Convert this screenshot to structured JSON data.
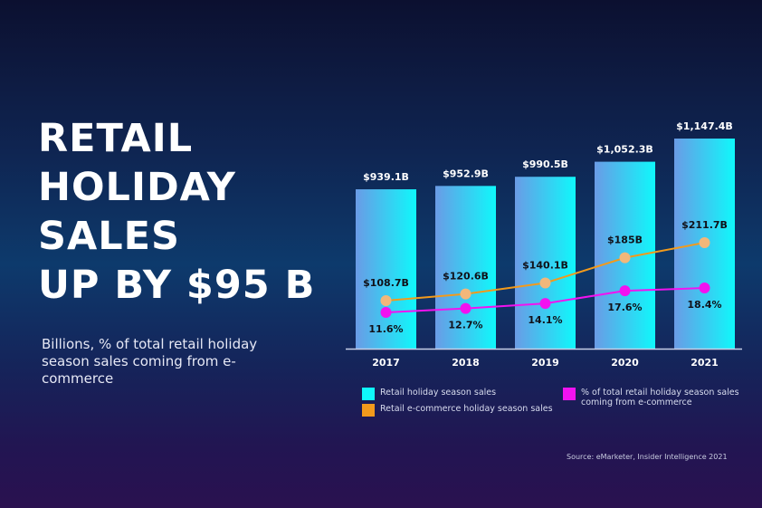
{
  "headline": [
    "RETAIL",
    "HOLIDAY",
    "SALES",
    "UP BY $95 B"
  ],
  "subtitle": "Billions, % of total retail holiday season sales coming from e-commerce",
  "source": "Source: eMarketer, Insider Intelligence 2021",
  "colors": {
    "bar_start": "#6a9be6",
    "bar_end": "#0ff8fb",
    "orange_line": "#f29a1c",
    "orange_dot": "#f2b77a",
    "magenta": "#f212f0"
  },
  "chart_data": {
    "type": "bar",
    "categories": [
      "2017",
      "2018",
      "2019",
      "2020",
      "2021"
    ],
    "series": [
      {
        "name": "Retail holiday season sales",
        "kind": "bar",
        "values": [
          939.1,
          952.9,
          990.5,
          1052.3,
          1147.4
        ],
        "labels": [
          "$939.1B",
          "$952.9B",
          "$990.5B",
          "$1,052.3B",
          "$1,147.4B"
        ],
        "color": "#0ff8fb"
      },
      {
        "name": "Retail e-commerce holiday season sales",
        "kind": "line",
        "values": [
          108.7,
          120.6,
          140.1,
          185,
          211.7
        ],
        "labels": [
          "$108.7B",
          "$120.6B",
          "$140.1B",
          "$185B",
          "$211.7B"
        ],
        "color": "#f29a1c"
      },
      {
        "name": "% of total retail holiday season sales coming from e-commerce",
        "kind": "line",
        "values": [
          11.6,
          12.7,
          14.1,
          17.6,
          18.4
        ],
        "labels": [
          "11.6%",
          "12.7%",
          "14.1%",
          "17.6%",
          "18.4%"
        ],
        "color": "#f212f0"
      }
    ],
    "legend_lines": [
      [
        "Retail holiday season sales"
      ],
      [
        "Retail e-commerce holiday season sales"
      ],
      [
        "% of total retail holiday season sales",
        "coming from e-commerce"
      ]
    ],
    "legend": "bottom",
    "grid": false
  }
}
